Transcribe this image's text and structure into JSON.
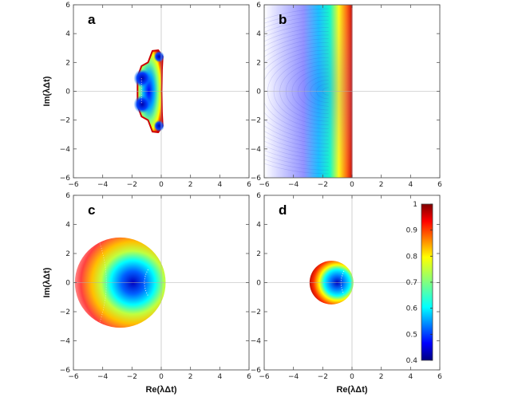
{
  "chart_data": {
    "type": "heatmap",
    "description_source": "stability regions in the complex plane",
    "xlim": [
      -6,
      6
    ],
    "ylim": [
      -6,
      6
    ],
    "xticks": [
      -6,
      -4,
      -2,
      0,
      2,
      4,
      6
    ],
    "yticks": [
      -6,
      -4,
      -2,
      0,
      2,
      4,
      6
    ],
    "xlabel": "Re(λΔt)",
    "ylabel": "Im(λΔt)",
    "colorbar": {
      "min": 0.4,
      "max": 1,
      "ticks": [
        0.4,
        0.5,
        0.6,
        0.7,
        0.8,
        0.9,
        1
      ],
      "colormap": [
        "#00007f",
        "#0000ff",
        "#0080ff",
        "#00ffff",
        "#80ff80",
        "#ffff00",
        "#ff8000",
        "#ff0000",
        "#7f0000"
      ]
    },
    "panels": [
      {
        "label": "a",
        "show_xlabel": false,
        "show_ylabel": true,
        "region": "kidney shape spanning Re -1.6 to 0.1, Im -2.8 to 2.8, minima near (-1.3, ±0.9) and (-0.1, ±2.4)"
      },
      {
        "label": "b",
        "show_xlabel": false,
        "show_ylabel": false,
        "region": "left half-plane Re <= 0 across full Im range"
      },
      {
        "label": "c",
        "show_xlabel": true,
        "show_ylabel": true,
        "region": "disk centred near (-2.8, 0) radius about 3.1, minimum near (-1, 0)"
      },
      {
        "label": "d",
        "show_xlabel": true,
        "show_ylabel": false,
        "region": "disk centred near (-1.4, 0) radius about 1.5, minimum near (-0.7, 0)"
      }
    ]
  }
}
